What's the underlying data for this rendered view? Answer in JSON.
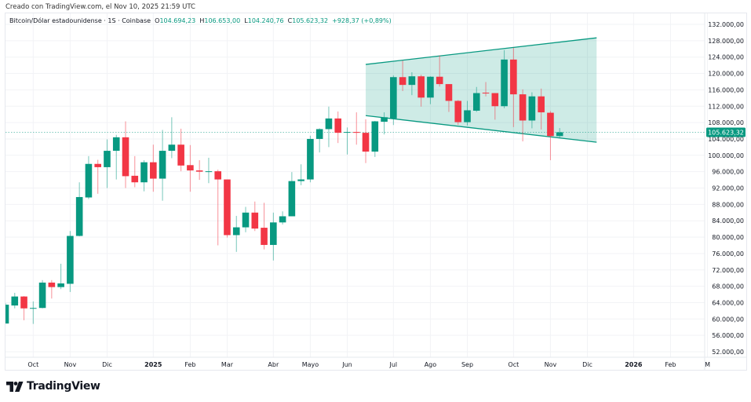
{
  "header": {
    "created_text": "Creado con TradingView.com, el Nov 10, 2025 21:59 UTC"
  },
  "legend": {
    "symbol": "Bitcoin/Dólar estadounidense · 1S · Coinbase",
    "o_label": "O",
    "o_value": "104.694,23",
    "h_label": "H",
    "h_value": "106.653,00",
    "l_label": "L",
    "l_value": "104.240,76",
    "c_label": "C",
    "c_value": "105.623,32",
    "change": "+928,37 (+0,89%)"
  },
  "price_label": "105.623,32",
  "logo": {
    "text": "TradingView"
  },
  "colors": {
    "up": "#089981",
    "down": "#f23645",
    "channel": "#089981",
    "grid": "#f2f3f6",
    "last_price": "#089981"
  },
  "chart_data": {
    "type": "candlestick",
    "interval": "1 week",
    "y_range": [
      50000,
      134000
    ],
    "y_ticks": [
      52000,
      56000,
      60000,
      64000,
      68000,
      72000,
      76000,
      80000,
      84000,
      88000,
      92000,
      96000,
      100000,
      104000,
      108000,
      112000,
      116000,
      120000,
      124000,
      128000,
      132000
    ],
    "y_tick_labels": [
      "52.000,00",
      "56.000,00",
      "60.000,00",
      "64.000,00",
      "68.000,00",
      "72.000,00",
      "76.000,00",
      "80.000,00",
      "84.000,00",
      "88.000,00",
      "92.000,00",
      "96.000,00",
      "100.000,00",
      "104.000,00",
      "108.000,00",
      "112.000,00",
      "116.000,00",
      "120.000,00",
      "124.000,00",
      "128.000,00",
      "132.000,00"
    ],
    "x_ticks": [
      {
        "label": "Oct",
        "date": "2024-10-07",
        "bold": false
      },
      {
        "label": "Nov",
        "date": "2024-11-04",
        "bold": false
      },
      {
        "label": "Dic",
        "date": "2024-12-02",
        "bold": false
      },
      {
        "label": "2025",
        "date": "2025-01-06",
        "bold": true
      },
      {
        "label": "Feb",
        "date": "2025-02-03",
        "bold": false
      },
      {
        "label": "Mar",
        "date": "2025-03-03",
        "bold": false
      },
      {
        "label": "Abr",
        "date": "2025-04-07",
        "bold": false
      },
      {
        "label": "Mayo",
        "date": "2025-05-05",
        "bold": false
      },
      {
        "label": "Jun",
        "date": "2025-06-02",
        "bold": false
      },
      {
        "label": "Jul",
        "date": "2025-07-07",
        "bold": false
      },
      {
        "label": "Ago",
        "date": "2025-08-04",
        "bold": false
      },
      {
        "label": "Sep",
        "date": "2025-09-01",
        "bold": false
      },
      {
        "label": "Oct",
        "date": "2025-10-06",
        "bold": false
      },
      {
        "label": "Nov",
        "date": "2025-11-03",
        "bold": false
      },
      {
        "label": "Dic",
        "date": "2025-12-01",
        "bold": false
      },
      {
        "label": "2026",
        "date": "2026-01-05",
        "bold": true
      },
      {
        "label": "Feb",
        "date": "2026-02-02",
        "bold": false
      },
      {
        "label": "M",
        "date": "2026-03-02",
        "bold": false
      }
    ],
    "last_price": 105623.32,
    "candles_columns": [
      "date",
      "open",
      "high",
      "low",
      "close"
    ],
    "candles": [
      [
        "2024-09-16",
        58900,
        63900,
        58900,
        63500
      ],
      [
        "2024-09-23",
        63300,
        66400,
        62600,
        65500
      ],
      [
        "2024-09-30",
        65500,
        65600,
        59700,
        62600
      ],
      [
        "2024-10-07",
        62600,
        64300,
        58800,
        62700
      ],
      [
        "2024-10-14",
        62700,
        69500,
        62600,
        68900
      ],
      [
        "2024-10-21",
        68900,
        69500,
        65000,
        67800
      ],
      [
        "2024-10-28",
        67800,
        73500,
        67300,
        68700
      ],
      [
        "2024-11-04",
        68600,
        81500,
        66600,
        80300
      ],
      [
        "2024-11-11",
        80300,
        93400,
        80200,
        89800
      ],
      [
        "2024-11-18",
        89700,
        99800,
        89300,
        97900
      ],
      [
        "2024-11-25",
        97900,
        98900,
        90600,
        97100
      ],
      [
        "2024-12-02",
        97100,
        103900,
        92000,
        101100
      ],
      [
        "2024-12-09",
        101100,
        105000,
        94100,
        104400
      ],
      [
        "2024-12-16",
        104400,
        108300,
        92000,
        94900
      ],
      [
        "2024-12-23",
        95000,
        99800,
        92200,
        93400
      ],
      [
        "2024-12-30",
        93400,
        98800,
        91200,
        98300
      ],
      [
        "2025-01-06",
        98300,
        102600,
        91100,
        94300
      ],
      [
        "2025-01-13",
        94300,
        106200,
        88900,
        101100
      ],
      [
        "2025-01-20",
        101100,
        109300,
        99300,
        102600
      ],
      [
        "2025-01-27",
        102600,
        106500,
        96100,
        97500
      ],
      [
        "2025-02-03",
        97600,
        102500,
        91100,
        96300
      ],
      [
        "2025-02-10",
        96300,
        98800,
        94000,
        96000
      ],
      [
        "2025-02-17",
        96000,
        99400,
        93200,
        96100
      ],
      [
        "2025-02-24",
        96100,
        96500,
        78000,
        94100
      ],
      [
        "2025-03-03",
        94100,
        94100,
        79900,
        80500
      ],
      [
        "2025-03-10",
        80500,
        85200,
        76400,
        82400
      ],
      [
        "2025-03-17",
        82400,
        87400,
        81200,
        86000
      ],
      [
        "2025-03-24",
        86000,
        88700,
        81500,
        82100
      ],
      [
        "2025-03-31",
        82300,
        88400,
        77000,
        78100
      ],
      [
        "2025-04-07",
        78100,
        86000,
        74300,
        83600
      ],
      [
        "2025-04-14",
        83600,
        86300,
        83100,
        85100
      ],
      [
        "2025-04-21",
        85100,
        95900,
        85100,
        93700
      ],
      [
        "2025-04-28",
        93700,
        97800,
        92700,
        94100
      ],
      [
        "2025-05-05",
        94100,
        104800,
        93400,
        104000
      ],
      [
        "2025-05-12",
        104000,
        106600,
        100700,
        106400
      ],
      [
        "2025-05-19",
        106400,
        111900,
        102000,
        109000
      ],
      [
        "2025-05-26",
        109000,
        110700,
        103000,
        105500
      ],
      [
        "2025-06-02",
        105600,
        106800,
        100200,
        105700
      ],
      [
        "2025-06-09",
        105700,
        110500,
        102600,
        105500
      ],
      [
        "2025-06-16",
        105500,
        108800,
        98100,
        100900
      ],
      [
        "2025-06-23",
        100900,
        108400,
        99600,
        108300
      ],
      [
        "2025-06-30",
        108200,
        110500,
        105100,
        109300
      ],
      [
        "2025-07-07",
        109000,
        119500,
        107400,
        119100
      ],
      [
        "2025-07-14",
        119100,
        123100,
        115700,
        117200
      ],
      [
        "2025-07-21",
        117200,
        120300,
        114700,
        119300
      ],
      [
        "2025-07-28",
        119300,
        119700,
        111900,
        114100
      ],
      [
        "2025-08-04",
        114100,
        119300,
        112500,
        119200
      ],
      [
        "2025-08-11",
        119200,
        124400,
        116800,
        117400
      ],
      [
        "2025-08-18",
        117400,
        117400,
        110600,
        113300
      ],
      [
        "2025-08-25",
        113300,
        113500,
        107400,
        108100
      ],
      [
        "2025-09-01",
        108100,
        113300,
        107300,
        111000
      ],
      [
        "2025-09-08",
        110900,
        116700,
        110600,
        115200
      ],
      [
        "2025-09-15",
        115300,
        117900,
        114400,
        115200
      ],
      [
        "2025-09-22",
        115200,
        115200,
        108700,
        112000
      ],
      [
        "2025-09-29",
        112000,
        125700,
        111500,
        123400
      ],
      [
        "2025-10-06",
        123400,
        126300,
        106900,
        114900
      ],
      [
        "2025-10-13",
        114900,
        116100,
        103400,
        108500
      ],
      [
        "2025-10-20",
        108500,
        115400,
        106600,
        114400
      ],
      [
        "2025-10-27",
        114400,
        116300,
        106300,
        110500
      ],
      [
        "2025-11-03",
        110400,
        110800,
        98800,
        104700
      ],
      [
        "2025-11-10",
        104694.23,
        106653.0,
        104240.76,
        105623.32
      ]
    ],
    "channel": {
      "upper": [
        {
          "date": "2025-06-16",
          "price": 122200
        },
        {
          "date": "2025-12-08",
          "price": 128700
        }
      ],
      "lower": [
        {
          "date": "2025-06-16",
          "price": 109700
        },
        {
          "date": "2025-12-08",
          "price": 103200
        }
      ]
    }
  }
}
